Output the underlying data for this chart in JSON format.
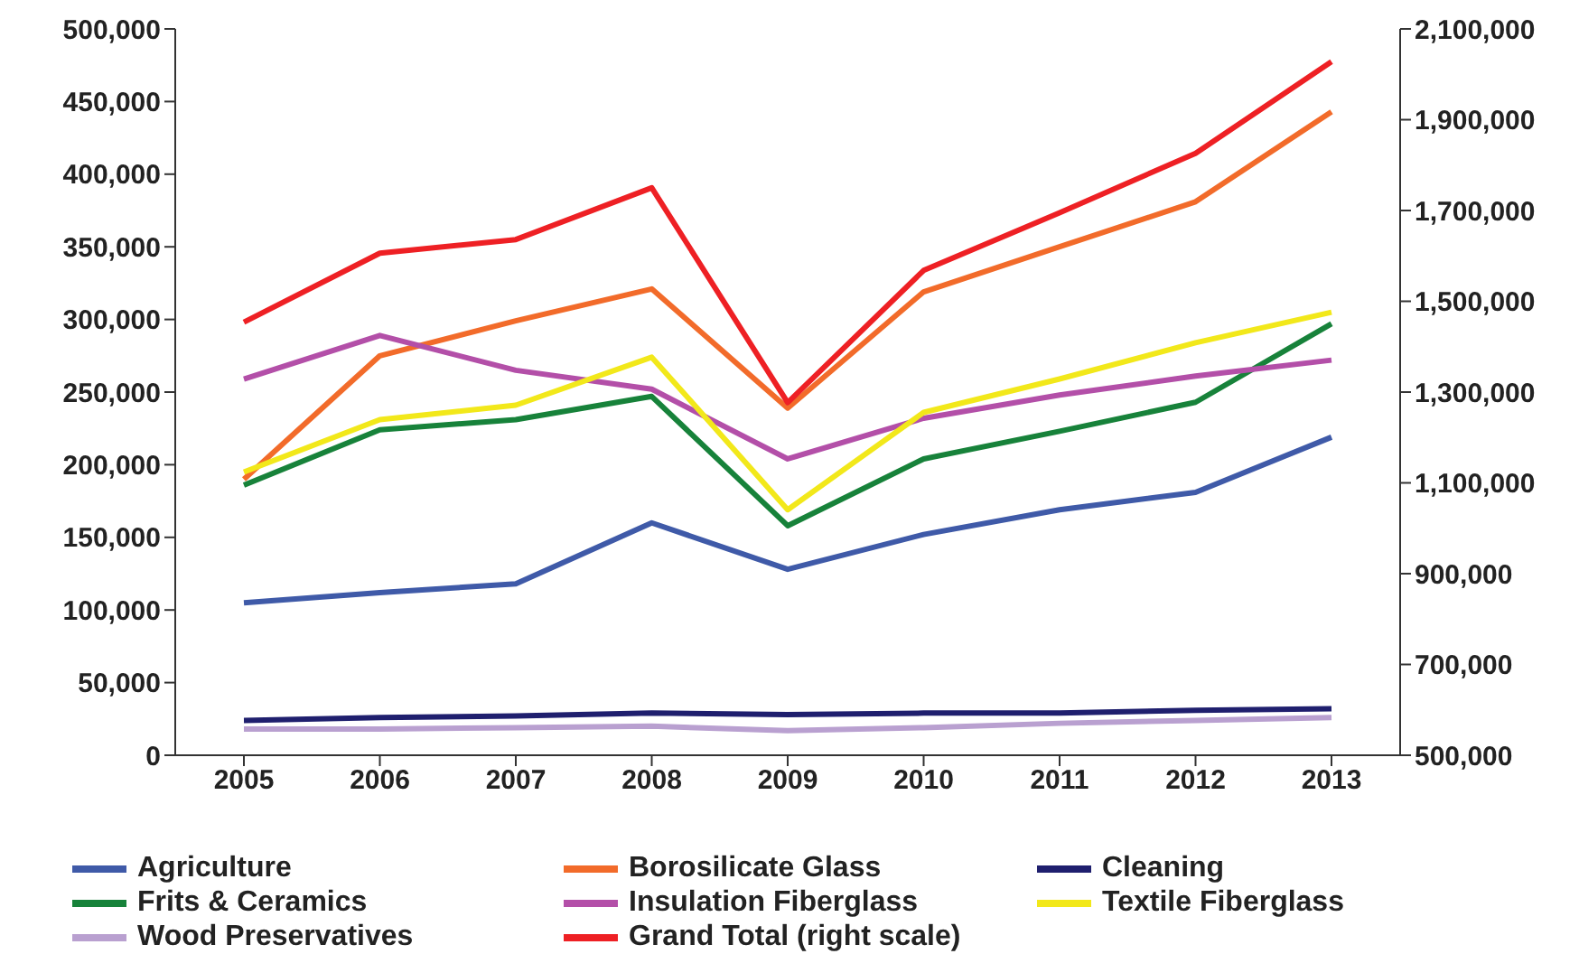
{
  "chart_data": {
    "type": "line",
    "categories": [
      "2005",
      "2006",
      "2007",
      "2008",
      "2009",
      "2010",
      "2011",
      "2012",
      "2013"
    ],
    "series": [
      {
        "name": "Agriculture",
        "color": "#3f5aa8",
        "values": [
          105000,
          112000,
          118000,
          160000,
          128000,
          152000,
          169000,
          181000,
          219000
        ]
      },
      {
        "name": "Borosilicate Glass",
        "color": "#f26b2a",
        "values": [
          190000,
          275000,
          299000,
          321000,
          239000,
          319000,
          350000,
          381000,
          443000
        ]
      },
      {
        "name": "Cleaning",
        "color": "#1f1f6e",
        "values": [
          24000,
          26000,
          27000,
          29000,
          28000,
          29000,
          29000,
          31000,
          32000
        ]
      },
      {
        "name": "Frits & Ceramics",
        "color": "#17823a",
        "values": [
          186000,
          224000,
          231000,
          247000,
          158000,
          204000,
          223000,
          243000,
          297000
        ]
      },
      {
        "name": "Insulation Fiberglass",
        "color": "#b34fa8",
        "values": [
          259000,
          289000,
          265000,
          252000,
          204000,
          232000,
          248000,
          261000,
          272000
        ]
      },
      {
        "name": "Textile Fiberglass",
        "color": "#f2e81a",
        "values": [
          195000,
          231000,
          241000,
          274000,
          169000,
          236000,
          259000,
          284000,
          305000
        ]
      },
      {
        "name": "Wood Preservatives",
        "color": "#b9a0d0",
        "values": [
          18000,
          18000,
          19000,
          20000,
          17000,
          19000,
          22000,
          24000,
          26000
        ]
      },
      {
        "name": "Grand Total (right scale)",
        "color": "#ee2024",
        "axis": "y2",
        "values": [
          1454000,
          1606000,
          1636000,
          1750000,
          1277000,
          1568000,
          1695000,
          1826000,
          2028000
        ]
      }
    ],
    "ylim": [
      0,
      500000
    ],
    "yticks": [
      0,
      {
        "value": 50000,
        "label": "50,000"
      },
      {
        "value": 100000,
        "label": "100,000"
      },
      {
        "value": 150000,
        "label": "150,000"
      },
      {
        "value": 200000,
        "label": "200,000"
      },
      {
        "value": 250000,
        "label": "250,000"
      },
      {
        "value": 300000,
        "label": "300,000"
      },
      {
        "value": 350000,
        "label": "350,000"
      },
      {
        "value": 400000,
        "label": "400,000"
      },
      {
        "value": 450000,
        "label": "450,000"
      },
      {
        "value": 500000,
        "label": "500,000"
      }
    ],
    "y2lim": [
      500000,
      2100000
    ],
    "y2ticks": [
      {
        "value": 500000,
        "label": "500,000"
      },
      {
        "value": 700000,
        "label": "700,000"
      },
      {
        "value": 900000,
        "label": "900,000"
      },
      {
        "value": 1100000,
        "label": "1,100,000"
      },
      {
        "value": 1300000,
        "label": "1,300,000"
      },
      {
        "value": 1500000,
        "label": "1,500,000"
      },
      {
        "value": 1700000,
        "label": "1,700,000"
      },
      {
        "value": 1900000,
        "label": "1,900,000"
      },
      {
        "value": 2100000,
        "label": "2,100,000"
      }
    ],
    "grid": false,
    "legend": "bottom",
    "marker": "none",
    "line_style": "solid"
  }
}
